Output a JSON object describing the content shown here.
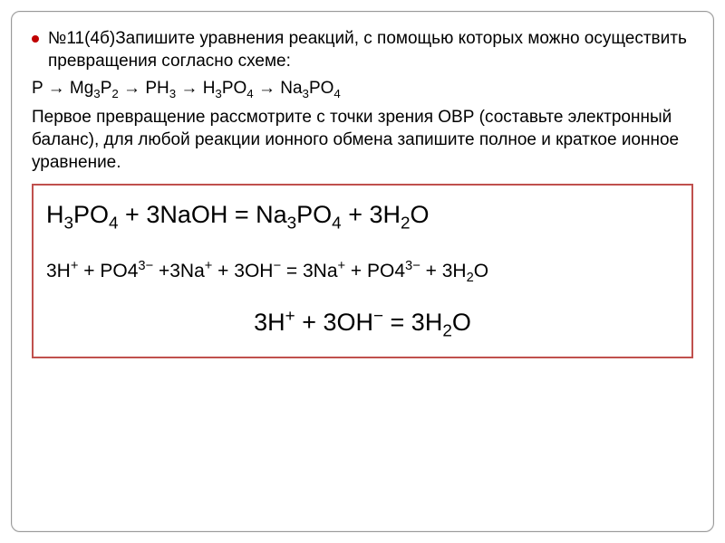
{
  "task": {
    "bullet_color": "#c00000",
    "prompt": "№11(4б)Запишите уравнения реакций, с помощью которых можно осуществить превращения согласно схеме:",
    "chain_html": "P → Mg<sub>3</sub>P<sub>2</sub> → PH<sub>3</sub> → H<sub>3</sub>PO<sub>4</sub> → Na<sub>3</sub>PO<sub>4</sub>",
    "obr": "Первое превращение рассмотрите с точки зрения ОВР (составьте электронный баланс), для любой реакции ионного обмена запишите полное и краткое ионное уравнение."
  },
  "answer": {
    "border_color": "#c0504d",
    "eq_main_html": "H<sub>3</sub>PO<sub>4</sub> + 3NaOH = Na<sub>3</sub>PO<sub>4</sub> + 3H<sub>2</sub>O",
    "eq_ionic_html": "3H<sup>+</sup> +  PO4<sup>3−</sup> +3Na<sup>+</sup> + 3OH<sup>−</sup> = 3Na<sup>+</sup> + PO4<sup>3−</sup> + 3H<sub>2</sub>O",
    "eq_short_html": "3H<sup>+</sup> + 3OH<sup>−</sup> =  3H<sub>2</sub>O"
  },
  "style": {
    "text_color": "#000000",
    "background": "#ffffff",
    "body_fontsize": 19,
    "eq_main_fontsize": 27,
    "eq_ionic_fontsize": 21,
    "eq_short_fontsize": 27
  }
}
